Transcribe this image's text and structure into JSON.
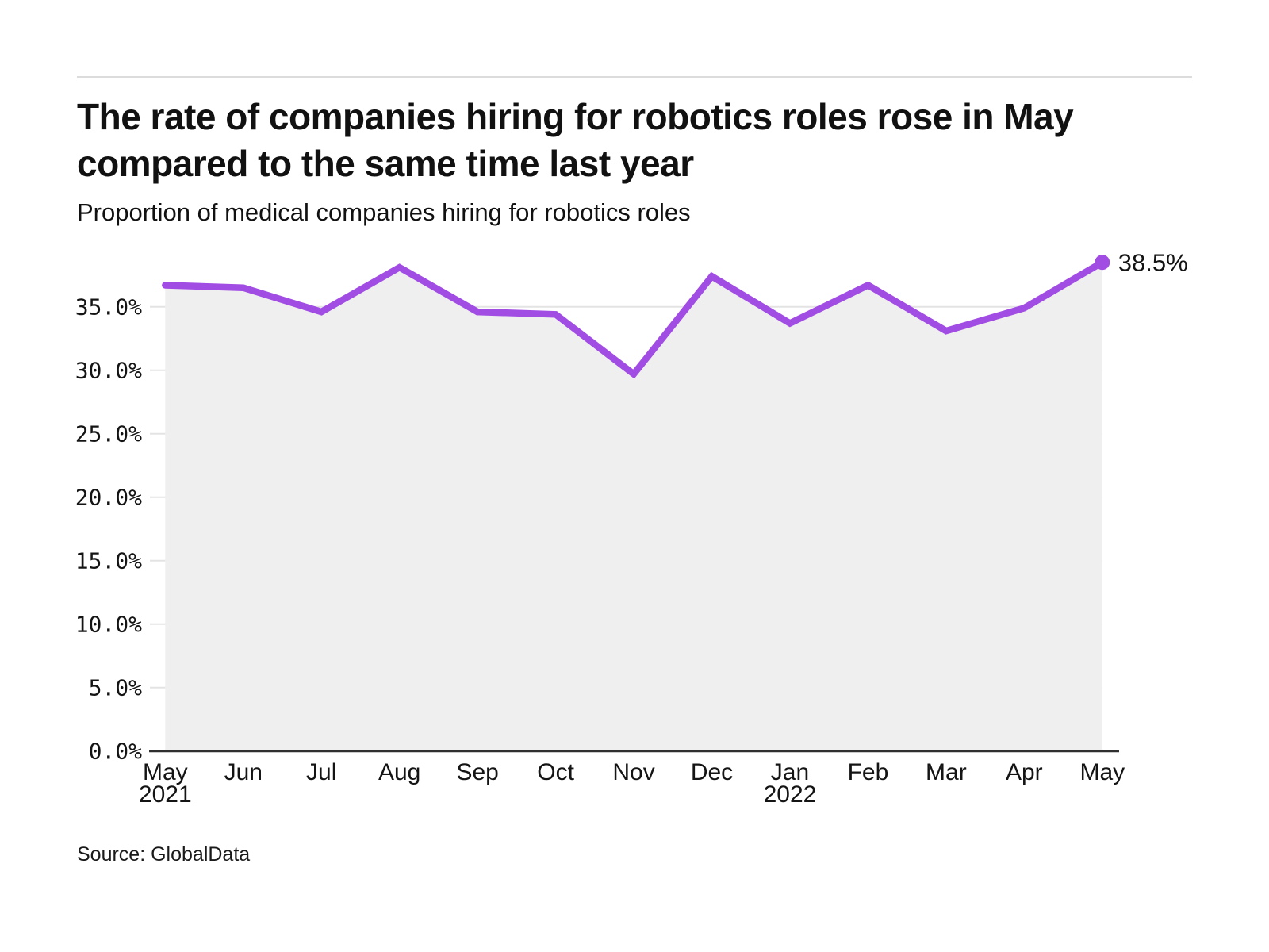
{
  "header": {
    "title_line1": "The rate of companies hiring for robotics roles rose in May",
    "title_line2": "compared to the same time last year",
    "subtitle": "Proportion of medical companies hiring for robotics roles"
  },
  "footer": {
    "source": "Source: GlobalData"
  },
  "colors": {
    "line": "#a14ce3",
    "area": "#efefef",
    "grid": "#e4e4e4",
    "axis": "#2f2f2f",
    "text": "#141414",
    "rule": "#dcdcdc"
  },
  "chart_data": {
    "type": "line",
    "title": "The rate of companies hiring for robotics roles rose in May compared to the same time last year",
    "subtitle": "Proportion of medical companies hiring for robotics roles",
    "xlabel": "",
    "ylabel": "",
    "grid": "horizontal",
    "legend_position": "none",
    "ylim": [
      0,
      40
    ],
    "categories": [
      "May",
      "Jun",
      "Jul",
      "Aug",
      "Sep",
      "Oct",
      "Nov",
      "Dec",
      "Jan",
      "Feb",
      "Mar",
      "Apr",
      "May"
    ],
    "year_labels": [
      {
        "index": 0,
        "label": "2021"
      },
      {
        "index": 8,
        "label": "2022"
      }
    ],
    "series": [
      {
        "name": "Proportion of medical companies hiring for robotics roles",
        "values": [
          36.7,
          36.5,
          34.6,
          38.1,
          34.6,
          34.4,
          29.7,
          37.4,
          33.7,
          36.7,
          33.1,
          34.9,
          38.5
        ]
      }
    ],
    "ytick_values": [
      0,
      5,
      10,
      15,
      20,
      25,
      30,
      35
    ],
    "ytick_labels": [
      "0.0%",
      "5.0%",
      "10.0%",
      "15.0%",
      "20.0%",
      "25.0%",
      "30.0%",
      "35.0%"
    ],
    "end_label": "38.5%"
  }
}
